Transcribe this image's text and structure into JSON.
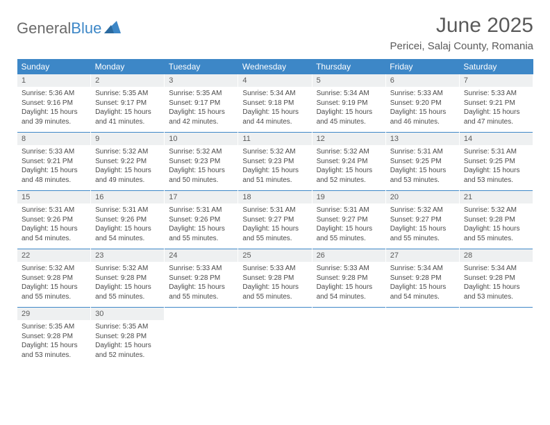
{
  "logo": {
    "part1": "General",
    "part2": "Blue"
  },
  "title": "June 2025",
  "location": "Pericei, Salaj County, Romania",
  "header_bg": "#3d87c7",
  "header_fg": "#ffffff",
  "daynum_bg": "#eef0f1",
  "text_color": "#4a4a4a",
  "columns": [
    "Sunday",
    "Monday",
    "Tuesday",
    "Wednesday",
    "Thursday",
    "Friday",
    "Saturday"
  ],
  "weeks": [
    [
      {
        "n": "1",
        "sr": "5:36 AM",
        "ss": "9:16 PM",
        "dl": "15 hours and 39 minutes."
      },
      {
        "n": "2",
        "sr": "5:35 AM",
        "ss": "9:17 PM",
        "dl": "15 hours and 41 minutes."
      },
      {
        "n": "3",
        "sr": "5:35 AM",
        "ss": "9:17 PM",
        "dl": "15 hours and 42 minutes."
      },
      {
        "n": "4",
        "sr": "5:34 AM",
        "ss": "9:18 PM",
        "dl": "15 hours and 44 minutes."
      },
      {
        "n": "5",
        "sr": "5:34 AM",
        "ss": "9:19 PM",
        "dl": "15 hours and 45 minutes."
      },
      {
        "n": "6",
        "sr": "5:33 AM",
        "ss": "9:20 PM",
        "dl": "15 hours and 46 minutes."
      },
      {
        "n": "7",
        "sr": "5:33 AM",
        "ss": "9:21 PM",
        "dl": "15 hours and 47 minutes."
      }
    ],
    [
      {
        "n": "8",
        "sr": "5:33 AM",
        "ss": "9:21 PM",
        "dl": "15 hours and 48 minutes."
      },
      {
        "n": "9",
        "sr": "5:32 AM",
        "ss": "9:22 PM",
        "dl": "15 hours and 49 minutes."
      },
      {
        "n": "10",
        "sr": "5:32 AM",
        "ss": "9:23 PM",
        "dl": "15 hours and 50 minutes."
      },
      {
        "n": "11",
        "sr": "5:32 AM",
        "ss": "9:23 PM",
        "dl": "15 hours and 51 minutes."
      },
      {
        "n": "12",
        "sr": "5:32 AM",
        "ss": "9:24 PM",
        "dl": "15 hours and 52 minutes."
      },
      {
        "n": "13",
        "sr": "5:31 AM",
        "ss": "9:25 PM",
        "dl": "15 hours and 53 minutes."
      },
      {
        "n": "14",
        "sr": "5:31 AM",
        "ss": "9:25 PM",
        "dl": "15 hours and 53 minutes."
      }
    ],
    [
      {
        "n": "15",
        "sr": "5:31 AM",
        "ss": "9:26 PM",
        "dl": "15 hours and 54 minutes."
      },
      {
        "n": "16",
        "sr": "5:31 AM",
        "ss": "9:26 PM",
        "dl": "15 hours and 54 minutes."
      },
      {
        "n": "17",
        "sr": "5:31 AM",
        "ss": "9:26 PM",
        "dl": "15 hours and 55 minutes."
      },
      {
        "n": "18",
        "sr": "5:31 AM",
        "ss": "9:27 PM",
        "dl": "15 hours and 55 minutes."
      },
      {
        "n": "19",
        "sr": "5:31 AM",
        "ss": "9:27 PM",
        "dl": "15 hours and 55 minutes."
      },
      {
        "n": "20",
        "sr": "5:32 AM",
        "ss": "9:27 PM",
        "dl": "15 hours and 55 minutes."
      },
      {
        "n": "21",
        "sr": "5:32 AM",
        "ss": "9:28 PM",
        "dl": "15 hours and 55 minutes."
      }
    ],
    [
      {
        "n": "22",
        "sr": "5:32 AM",
        "ss": "9:28 PM",
        "dl": "15 hours and 55 minutes."
      },
      {
        "n": "23",
        "sr": "5:32 AM",
        "ss": "9:28 PM",
        "dl": "15 hours and 55 minutes."
      },
      {
        "n": "24",
        "sr": "5:33 AM",
        "ss": "9:28 PM",
        "dl": "15 hours and 55 minutes."
      },
      {
        "n": "25",
        "sr": "5:33 AM",
        "ss": "9:28 PM",
        "dl": "15 hours and 55 minutes."
      },
      {
        "n": "26",
        "sr": "5:33 AM",
        "ss": "9:28 PM",
        "dl": "15 hours and 54 minutes."
      },
      {
        "n": "27",
        "sr": "5:34 AM",
        "ss": "9:28 PM",
        "dl": "15 hours and 54 minutes."
      },
      {
        "n": "28",
        "sr": "5:34 AM",
        "ss": "9:28 PM",
        "dl": "15 hours and 53 minutes."
      }
    ],
    [
      {
        "n": "29",
        "sr": "5:35 AM",
        "ss": "9:28 PM",
        "dl": "15 hours and 53 minutes."
      },
      {
        "n": "30",
        "sr": "5:35 AM",
        "ss": "9:28 PM",
        "dl": "15 hours and 52 minutes."
      },
      null,
      null,
      null,
      null,
      null
    ]
  ],
  "labels": {
    "sunrise": "Sunrise:",
    "sunset": "Sunset:",
    "daylight": "Daylight:"
  }
}
